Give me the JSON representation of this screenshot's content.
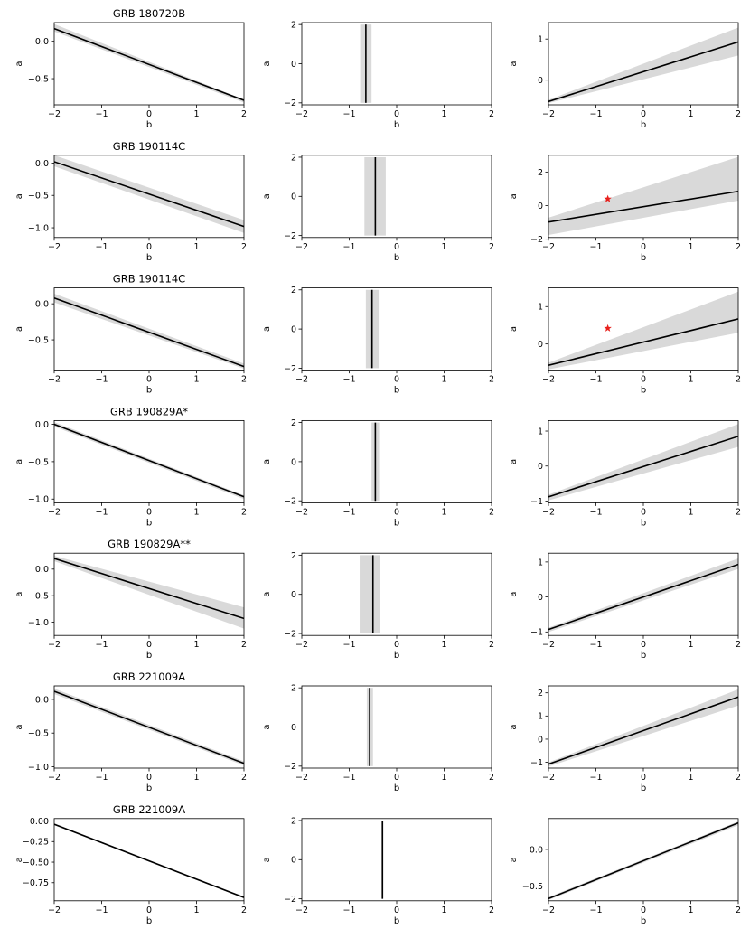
{
  "figure": {
    "x_label": "b",
    "y_label": "a"
  },
  "chart_data": [
    {
      "row": 1,
      "col": 1,
      "type": "line",
      "title": "GRB 180720B",
      "xlabel": "b",
      "ylabel": "a",
      "xlim": [
        -2,
        2
      ],
      "ylim": [
        -0.85,
        0.25
      ],
      "xticks": [
        -2,
        -1,
        0,
        1,
        2
      ],
      "yticks": [
        0.0,
        -0.5
      ],
      "ytick_labels": [
        "0.0",
        "−0.5"
      ],
      "line": [
        [
          -2,
          0.17
        ],
        [
          2,
          -0.79
        ]
      ],
      "band": [
        [
          -2,
          0.23,
          0.13
        ],
        [
          2,
          -0.78,
          -0.82
        ]
      ],
      "marker": null
    },
    {
      "row": 1,
      "col": 2,
      "type": "line",
      "title": "",
      "xlabel": "b",
      "ylabel": "a",
      "xlim": [
        -2,
        2
      ],
      "ylim": [
        -2.1,
        2.1
      ],
      "xticks": [
        -2,
        -1,
        0,
        1,
        2
      ],
      "yticks": [
        2,
        0,
        -2
      ],
      "ytick_labels": [
        "2",
        "0",
        "−2"
      ],
      "vline": {
        "x": -0.65,
        "band": [
          -0.77,
          -0.53
        ],
        "span": [
          -2,
          2
        ]
      },
      "marker": null
    },
    {
      "row": 1,
      "col": 3,
      "type": "line",
      "title": "",
      "xlabel": "b",
      "ylabel": "a",
      "xlim": [
        -2,
        2
      ],
      "ylim": [
        -0.6,
        1.4
      ],
      "xticks": [
        -2,
        -1,
        0,
        1,
        2
      ],
      "yticks": [
        1,
        0
      ],
      "ytick_labels": [
        "1",
        "0"
      ],
      "line": [
        [
          -2,
          -0.52
        ],
        [
          2,
          0.93
        ]
      ],
      "band": [
        [
          -2,
          -0.48,
          -0.56
        ],
        [
          2,
          1.28,
          0.6
        ]
      ],
      "marker": null
    },
    {
      "row": 2,
      "col": 1,
      "type": "line",
      "title": "GRB 190114C",
      "xlabel": "b",
      "ylabel": "a",
      "xlim": [
        -2,
        2
      ],
      "ylim": [
        -1.15,
        0.12
      ],
      "xticks": [
        -2,
        -1,
        0,
        1,
        2
      ],
      "yticks": [
        0.0,
        -0.5,
        -1.0
      ],
      "ytick_labels": [
        "0.0",
        "−0.5",
        "−1.0"
      ],
      "line": [
        [
          -2,
          0.02
        ],
        [
          2,
          -0.98
        ]
      ],
      "band": [
        [
          -2,
          0.12,
          -0.05
        ],
        [
          2,
          -0.88,
          -1.08
        ]
      ],
      "marker": null
    },
    {
      "row": 2,
      "col": 2,
      "type": "line",
      "title": "",
      "xlabel": "b",
      "ylabel": "a",
      "xlim": [
        -2,
        2
      ],
      "ylim": [
        -2.1,
        2.1
      ],
      "xticks": [
        -2,
        -1,
        0,
        1,
        2
      ],
      "yticks": [
        2,
        0,
        -2
      ],
      "ytick_labels": [
        "2",
        "0",
        "−2"
      ],
      "vline": {
        "x": -0.45,
        "band": [
          -0.68,
          -0.23
        ],
        "span": [
          -2,
          2
        ]
      },
      "marker": null
    },
    {
      "row": 2,
      "col": 3,
      "type": "line",
      "title": "",
      "xlabel": "b",
      "ylabel": "a",
      "xlim": [
        -2,
        2
      ],
      "ylim": [
        -1.9,
        3.0
      ],
      "xticks": [
        -2,
        -1,
        0,
        1,
        2
      ],
      "yticks": [
        2,
        0,
        -2
      ],
      "ytick_labels": [
        "2",
        "0",
        "−2"
      ],
      "line": [
        [
          -2,
          -0.98
        ],
        [
          2,
          0.85
        ]
      ],
      "band": [
        [
          -2,
          -0.72,
          -1.75
        ],
        [
          2,
          2.9,
          0.3
        ]
      ],
      "marker": {
        "x": -0.75,
        "y": 0.4,
        "color": "#e8201c"
      }
    },
    {
      "row": 3,
      "col": 1,
      "type": "line",
      "title": "GRB 190114C",
      "xlabel": "b",
      "ylabel": "a",
      "xlim": [
        -2,
        2
      ],
      "ylim": [
        -0.92,
        0.22
      ],
      "xticks": [
        -2,
        -1,
        0,
        1,
        2
      ],
      "yticks": [
        0.0,
        -0.5
      ],
      "ytick_labels": [
        "0.0",
        "−0.5"
      ],
      "line": [
        [
          -2,
          0.08
        ],
        [
          2,
          -0.87
        ]
      ],
      "band": [
        [
          -2,
          0.14,
          0.02
        ],
        [
          2,
          -0.83,
          -0.9
        ]
      ],
      "marker": null
    },
    {
      "row": 3,
      "col": 2,
      "type": "line",
      "title": "",
      "xlabel": "b",
      "ylabel": "a",
      "xlim": [
        -2,
        2
      ],
      "ylim": [
        -2.1,
        2.1
      ],
      "xticks": [
        -2,
        -1,
        0,
        1,
        2
      ],
      "yticks": [
        2,
        0,
        -2
      ],
      "ytick_labels": [
        "2",
        "0",
        "−2"
      ],
      "vline": {
        "x": -0.52,
        "band": [
          -0.65,
          -0.38
        ],
        "span": [
          -2,
          2
        ]
      },
      "marker": null
    },
    {
      "row": 3,
      "col": 3,
      "type": "line",
      "title": "",
      "xlabel": "b",
      "ylabel": "a",
      "xlim": [
        -2,
        2
      ],
      "ylim": [
        -0.7,
        1.5
      ],
      "xticks": [
        -2,
        -1,
        0,
        1,
        2
      ],
      "yticks": [
        1,
        0
      ],
      "ytick_labels": [
        "1",
        "0"
      ],
      "line": [
        [
          -2,
          -0.57
        ],
        [
          2,
          0.67
        ]
      ],
      "band": [
        [
          -2,
          -0.5,
          -0.68
        ],
        [
          2,
          1.4,
          0.3
        ]
      ],
      "marker": {
        "x": -0.75,
        "y": 0.42,
        "color": "#e8201c"
      }
    },
    {
      "row": 4,
      "col": 1,
      "type": "line",
      "title": "GRB 190829A*",
      "xlabel": "b",
      "ylabel": "a",
      "xlim": [
        -2,
        2
      ],
      "ylim": [
        -1.05,
        0.05
      ],
      "xticks": [
        -2,
        -1,
        0,
        1,
        2
      ],
      "yticks": [
        0.0,
        -0.5,
        -1.0
      ],
      "ytick_labels": [
        "0.0",
        "−0.5",
        "−1.0"
      ],
      "line": [
        [
          -2,
          0.0
        ],
        [
          2,
          -0.97
        ]
      ],
      "band": [
        [
          -2,
          0.03,
          -0.03
        ],
        [
          2,
          -0.95,
          -1.0
        ]
      ],
      "marker": null
    },
    {
      "row": 4,
      "col": 2,
      "type": "line",
      "title": "",
      "xlabel": "b",
      "ylabel": "a",
      "xlim": [
        -2,
        2
      ],
      "ylim": [
        -2.1,
        2.1
      ],
      "xticks": [
        -2,
        -1,
        0,
        1,
        2
      ],
      "yticks": [
        2,
        0,
        -2
      ],
      "ytick_labels": [
        "2",
        "0",
        "−2"
      ],
      "vline": {
        "x": -0.45,
        "band": [
          -0.53,
          -0.37
        ],
        "span": [
          -2,
          2
        ]
      },
      "marker": null
    },
    {
      "row": 4,
      "col": 3,
      "type": "line",
      "title": "",
      "xlabel": "b",
      "ylabel": "a",
      "xlim": [
        -2,
        2
      ],
      "ylim": [
        -1.05,
        1.3
      ],
      "xticks": [
        -2,
        -1,
        0,
        1,
        2
      ],
      "yticks": [
        1,
        0,
        -1
      ],
      "ytick_labels": [
        "1",
        "0",
        "−1"
      ],
      "line": [
        [
          -2,
          -0.88
        ],
        [
          2,
          0.85
        ]
      ],
      "band": [
        [
          -2,
          -0.82,
          -0.98
        ],
        [
          2,
          1.2,
          0.55
        ]
      ],
      "marker": null
    },
    {
      "row": 5,
      "col": 1,
      "type": "line",
      "title": "GRB 190829A**",
      "xlabel": "b",
      "ylabel": "a",
      "xlim": [
        -2,
        2
      ],
      "ylim": [
        -1.25,
        0.3
      ],
      "xticks": [
        -2,
        -1,
        0,
        1,
        2
      ],
      "yticks": [
        0.0,
        -0.5,
        -1.0
      ],
      "ytick_labels": [
        "0.0",
        "−0.5",
        "−1.0"
      ],
      "line": [
        [
          -2,
          0.2
        ],
        [
          2,
          -0.93
        ]
      ],
      "band": [
        [
          -2,
          0.25,
          0.15
        ],
        [
          2,
          -0.72,
          -1.12
        ]
      ],
      "marker": null
    },
    {
      "row": 5,
      "col": 2,
      "type": "line",
      "title": "",
      "xlabel": "b",
      "ylabel": "a",
      "xlim": [
        -2,
        2
      ],
      "ylim": [
        -2.1,
        2.1
      ],
      "xticks": [
        -2,
        -1,
        0,
        1,
        2
      ],
      "yticks": [
        2,
        0,
        -2
      ],
      "ytick_labels": [
        "2",
        "0",
        "−2"
      ],
      "vline": {
        "x": -0.5,
        "band": [
          -0.78,
          -0.35
        ],
        "span": [
          -2,
          2
        ]
      },
      "marker": null
    },
    {
      "row": 5,
      "col": 3,
      "type": "line",
      "title": "",
      "xlabel": "b",
      "ylabel": "a",
      "xlim": [
        -2,
        2
      ],
      "ylim": [
        -1.1,
        1.25
      ],
      "xticks": [
        -2,
        -1,
        0,
        1,
        2
      ],
      "yticks": [
        1,
        0,
        -1
      ],
      "ytick_labels": [
        "1",
        "0",
        "−1"
      ],
      "line": [
        [
          -2,
          -0.93
        ],
        [
          2,
          0.93
        ]
      ],
      "band": [
        [
          -2,
          -0.88,
          -1.0
        ],
        [
          2,
          1.1,
          0.8
        ]
      ],
      "marker": null
    },
    {
      "row": 6,
      "col": 1,
      "type": "line",
      "title": "GRB 221009A",
      "xlabel": "b",
      "ylabel": "a",
      "xlim": [
        -2,
        2
      ],
      "ylim": [
        -1.02,
        0.2
      ],
      "xticks": [
        -2,
        -1,
        0,
        1,
        2
      ],
      "yticks": [
        0.0,
        -0.5,
        -1.0
      ],
      "ytick_labels": [
        "0.0",
        "−0.5",
        "−1.0"
      ],
      "line": [
        [
          -2,
          0.12
        ],
        [
          2,
          -0.95
        ]
      ],
      "band": [
        [
          -2,
          0.16,
          0.08
        ],
        [
          2,
          -0.92,
          -0.98
        ]
      ],
      "marker": null
    },
    {
      "row": 6,
      "col": 2,
      "type": "line",
      "title": "",
      "xlabel": "b",
      "ylabel": "a",
      "xlim": [
        -2,
        2
      ],
      "ylim": [
        -2.1,
        2.1
      ],
      "xticks": [
        -2,
        -1,
        0,
        1,
        2
      ],
      "yticks": [
        2,
        0,
        -2
      ],
      "ytick_labels": [
        "2",
        "0",
        "−2"
      ],
      "vline": {
        "x": -0.57,
        "band": [
          -0.63,
          -0.5
        ],
        "span": [
          -2,
          2
        ]
      },
      "marker": null
    },
    {
      "row": 6,
      "col": 3,
      "type": "line",
      "title": "",
      "xlabel": "b",
      "ylabel": "a",
      "xlim": [
        -2,
        2
      ],
      "ylim": [
        -1.25,
        2.3
      ],
      "xticks": [
        -2,
        -1,
        0,
        1,
        2
      ],
      "yticks": [
        2,
        1,
        0,
        -1
      ],
      "ytick_labels": [
        "2",
        "1",
        "0",
        "−1"
      ],
      "line": [
        [
          -2,
          -1.08
        ],
        [
          2,
          1.82
        ]
      ],
      "band": [
        [
          -2,
          -1.0,
          -1.18
        ],
        [
          2,
          2.15,
          1.45
        ]
      ],
      "marker": null
    },
    {
      "row": 7,
      "col": 1,
      "type": "line",
      "title": "GRB 221009A",
      "xlabel": "b",
      "ylabel": "a",
      "xlim": [
        -2,
        2
      ],
      "ylim": [
        -0.97,
        0.03
      ],
      "xticks": [
        -2,
        -1,
        0,
        1,
        2
      ],
      "yticks": [
        0.0,
        -0.25,
        -0.5,
        -0.75
      ],
      "ytick_labels": [
        "0.00",
        "−0.25",
        "−0.50",
        "−0.75"
      ],
      "line": [
        [
          -2,
          -0.04
        ],
        [
          2,
          -0.93
        ]
      ],
      "band": [
        [
          -2,
          -0.03,
          -0.05
        ],
        [
          2,
          -0.92,
          -0.94
        ]
      ],
      "marker": null
    },
    {
      "row": 7,
      "col": 2,
      "type": "line",
      "title": "",
      "xlabel": "b",
      "ylabel": "a",
      "xlim": [
        -2,
        2
      ],
      "ylim": [
        -2.1,
        2.1
      ],
      "xticks": [
        -2,
        -1,
        0,
        1,
        2
      ],
      "yticks": [
        2,
        0,
        -2
      ],
      "ytick_labels": [
        "2",
        "0",
        "−2"
      ],
      "vline": {
        "x": -0.3,
        "band": [
          -0.32,
          -0.28
        ],
        "span": [
          -2,
          2
        ]
      },
      "marker": null
    },
    {
      "row": 7,
      "col": 3,
      "type": "line",
      "title": "",
      "xlabel": "b",
      "ylabel": "a",
      "xlim": [
        -2,
        2
      ],
      "ylim": [
        -0.7,
        0.42
      ],
      "xticks": [
        -2,
        -1,
        0,
        1,
        2
      ],
      "yticks": [
        0.0,
        -0.5
      ],
      "ytick_labels": [
        "0.0",
        "−0.5"
      ],
      "line": [
        [
          -2,
          -0.67
        ],
        [
          2,
          0.36
        ]
      ],
      "band": [
        [
          -2,
          -0.65,
          -0.69
        ],
        [
          2,
          0.38,
          0.33
        ]
      ],
      "marker": null
    }
  ]
}
